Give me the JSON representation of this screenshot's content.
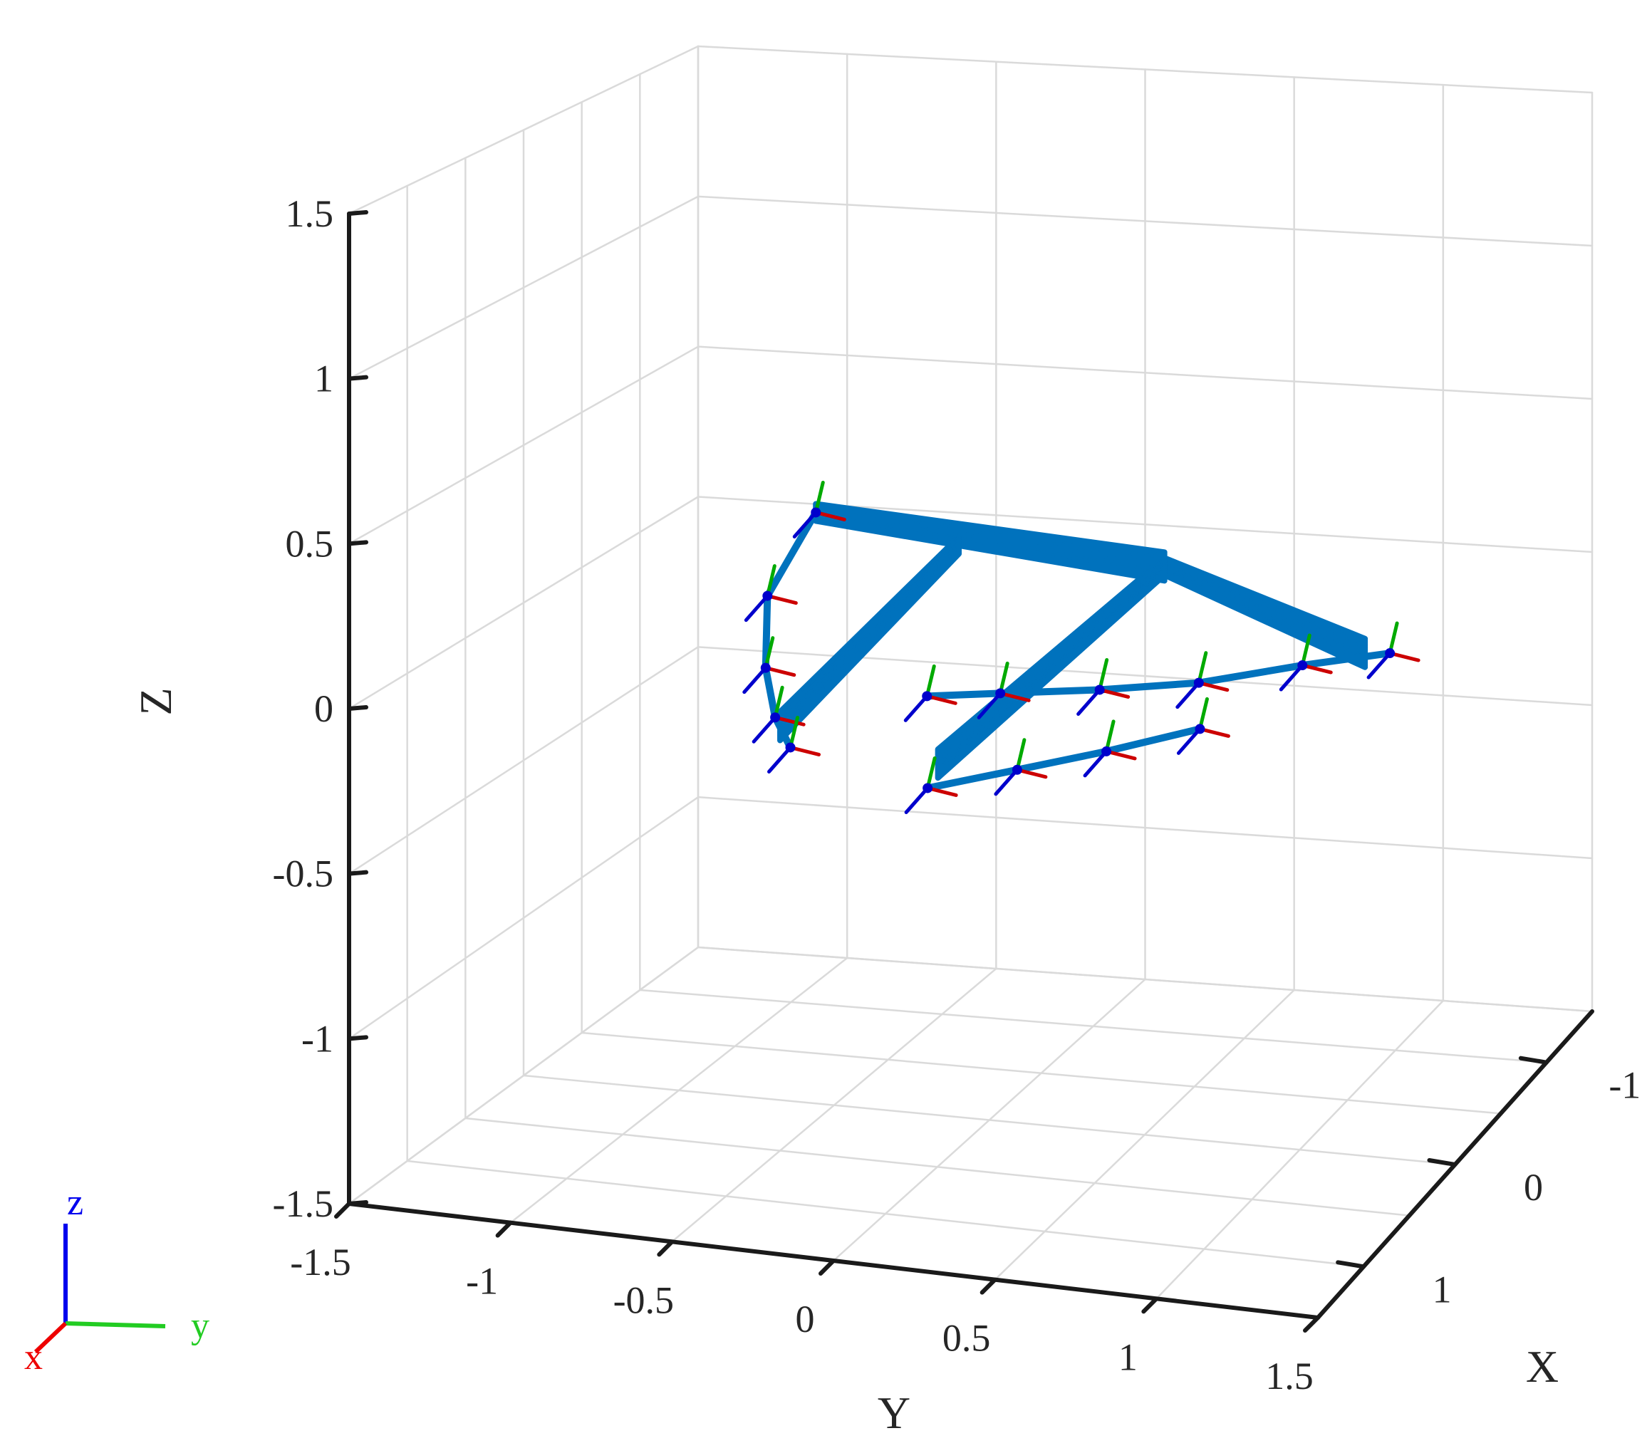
{
  "chart_data": {
    "type": "scatter",
    "title": "",
    "axes": {
      "x": {
        "label": "X",
        "range": [
          -1.5,
          1.5
        ],
        "ticks": [
          "-1",
          "0",
          "1"
        ],
        "tick_values": [
          -1,
          0,
          1
        ]
      },
      "y": {
        "label": "Y",
        "range": [
          -1.5,
          1.5
        ],
        "ticks": [
          "-1.5",
          "-1",
          "-0.5",
          "0",
          "0.5",
          "1",
          "1.5"
        ],
        "tick_values": [
          -1.5,
          -1,
          -0.5,
          0,
          0.5,
          1,
          1.5
        ]
      },
      "z": {
        "label": "Z",
        "range": [
          -1.5,
          1.5
        ],
        "ticks": [
          "1.5",
          "1",
          "0.5",
          "0",
          "-0.5",
          "-1",
          "-1.5"
        ],
        "tick_values": [
          1.5,
          1,
          0.5,
          0,
          -0.5,
          -1,
          -1.5
        ]
      }
    },
    "grid": true,
    "orientation_triad": {
      "x": "x",
      "y": "y",
      "z": "z"
    },
    "colors": {
      "link": "#0072BD",
      "frame_x": "#CC0000",
      "frame_y": "#00AA00",
      "frame_z": "#0000CC",
      "grid": "#DADADA",
      "axis": "#1A1A1A"
    },
    "links": [
      {
        "from": [
          -0.4,
          -0.7,
          0.25
        ],
        "to": [
          -0.2,
          0.5,
          0.2
        ]
      },
      {
        "from": [
          -0.2,
          0.5,
          0.2
        ],
        "to": [
          0.3,
          1.3,
          0.1
        ]
      },
      {
        "from": [
          -0.2,
          0.5,
          0.2
        ],
        "to": [
          0.8,
          0.1,
          -0.2
        ]
      },
      {
        "from": [
          -0.3,
          -0.2,
          0.2
        ],
        "to": [
          0.5,
          -0.5,
          -0.2
        ]
      }
    ],
    "paths": [
      {
        "name": "",
        "points": [
          [
            -0.4,
            -0.7,
            0.25
          ],
          [
            -0.1,
            -0.75,
            0.05
          ],
          [
            0.2,
            -0.65,
            -0.1
          ],
          [
            0.4,
            -0.55,
            -0.2
          ],
          [
            0.55,
            -0.45,
            -0.25
          ]
        ]
      },
      {
        "name": "",
        "points": [
          [
            0.6,
            0.0,
            -0.05
          ],
          [
            0.5,
            0.2,
            -0.05
          ],
          [
            0.45,
            0.5,
            -0.03
          ],
          [
            0.4,
            0.8,
            0.0
          ],
          [
            0.3,
            1.1,
            0.05
          ],
          [
            0.2,
            1.35,
            0.08
          ]
        ]
      },
      {
        "name": "",
        "points": [
          [
            0.9,
            0.1,
            -0.25
          ],
          [
            0.8,
            0.35,
            -0.2
          ],
          [
            0.7,
            0.6,
            -0.15
          ],
          [
            0.55,
            0.85,
            -0.1
          ]
        ]
      }
    ]
  }
}
